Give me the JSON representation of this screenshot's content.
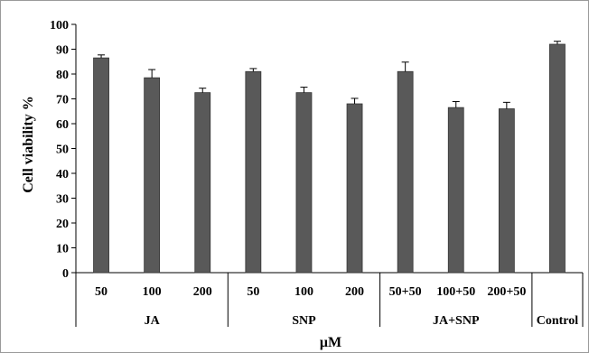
{
  "chart_data": {
    "type": "bar",
    "title": "",
    "xlabel": "μM",
    "ylabel": "Cell viability %",
    "ylim": [
      0,
      100
    ],
    "yticks": [
      0,
      10,
      20,
      30,
      40,
      50,
      60,
      70,
      80,
      90,
      100
    ],
    "grid": false,
    "legend": "none",
    "bar_color": "#595959",
    "categories": [
      "50",
      "100",
      "200",
      "50",
      "100",
      "200",
      "50+50",
      "100+50",
      "200+50",
      ""
    ],
    "values": [
      86.5,
      78.5,
      72.5,
      81,
      72.5,
      68,
      81,
      66.5,
      66,
      92
    ],
    "errors": [
      1.2,
      3.3,
      1.8,
      1.2,
      2.2,
      2.2,
      3.8,
      2.4,
      2.6,
      1.2
    ],
    "groups": [
      {
        "label": "JA",
        "start": 0,
        "end": 2
      },
      {
        "label": "SNP",
        "start": 3,
        "end": 5
      },
      {
        "label": "JA+SNP",
        "start": 6,
        "end": 8
      },
      {
        "label": "Control",
        "start": 9,
        "end": 9
      }
    ]
  }
}
